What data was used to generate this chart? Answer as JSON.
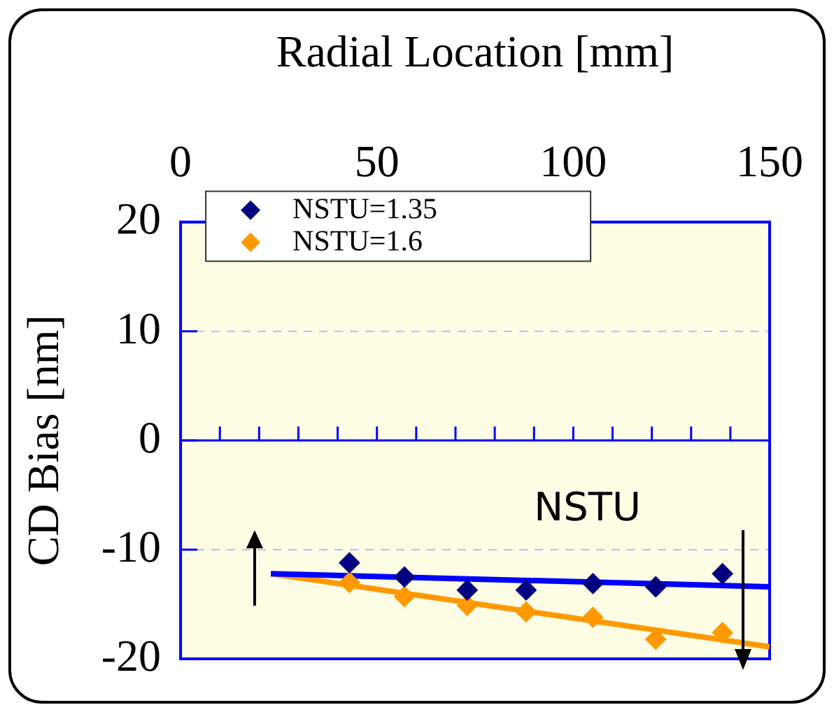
{
  "chart_data": {
    "type": "scatter",
    "xlabel": "Radial Location [mm]",
    "ylabel": "CD Bias [nm]",
    "xlim": [
      0,
      150
    ],
    "xticks": [
      0,
      {
        "value": 10,
        "label": null
      },
      {
        "value": 20,
        "label": null
      },
      {
        "value": 30,
        "label": null
      },
      {
        "value": 40,
        "label": null
      },
      50,
      {
        "value": 60,
        "label": null
      },
      {
        "value": 70,
        "label": null
      },
      {
        "value": 80,
        "label": null
      },
      {
        "value": 90,
        "label": null
      },
      100,
      {
        "value": 110,
        "label": null
      },
      {
        "value": 120,
        "label": null
      },
      {
        "value": 130,
        "label": null
      },
      {
        "value": 140,
        "label": null
      },
      150
    ],
    "ylim": [
      -20,
      20
    ],
    "yticks": [
      -20,
      -10,
      0,
      10,
      20
    ],
    "grid": "y",
    "legend": "top left",
    "marker": "diamond",
    "annotations": [
      "NSTU"
    ],
    "ref_lines": [
      {
        "axis": "y",
        "value": 0,
        "color": "#0000ff"
      }
    ],
    "series": [
      {
        "name": "NSTU=1.35",
        "color": "#000080",
        "x": [
          43,
          57,
          73,
          88,
          105,
          121,
          138
        ],
        "values": [
          -11.2,
          -12.5,
          -13.7,
          -13.7,
          -13.1,
          -13.4,
          -12.2
        ]
      },
      {
        "name": "NSTU=1.6",
        "color": "#ff9900",
        "x": [
          43,
          57,
          73,
          88,
          105,
          121,
          138
        ],
        "values": [
          -13.0,
          -14.3,
          -15.1,
          -15.7,
          -16.2,
          -18.2,
          -17.6
        ]
      },
      {
        "type": "line",
        "marker": "none",
        "color": "#0000ff",
        "x": [
          23,
          150
        ],
        "values": [
          -12.2,
          -13.4
        ]
      },
      {
        "type": "line",
        "marker": "none",
        "color": "#ff9900",
        "x": [
          23,
          150
        ],
        "values": [
          -12.2,
          -18.9
        ]
      }
    ]
  }
}
